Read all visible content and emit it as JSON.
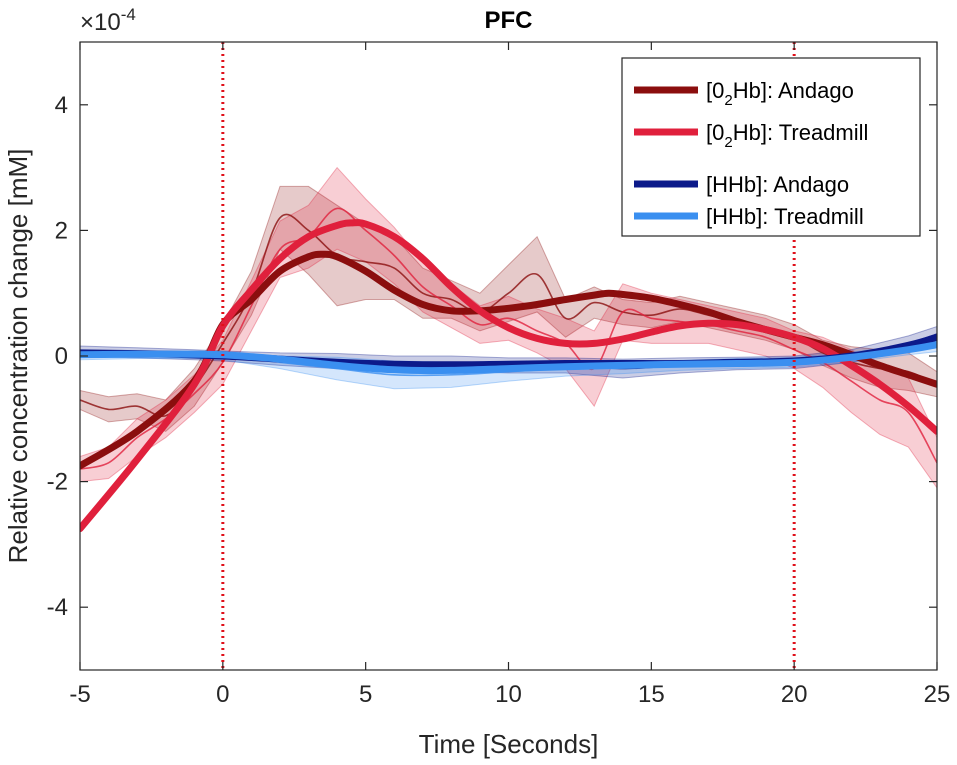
{
  "chart_data": {
    "type": "line",
    "title": "PFC",
    "xlabel": "Time [Seconds]",
    "ylabel": "Relative concentration change [mM]",
    "y_exponent_label": "×10",
    "y_exponent_power": "-4",
    "xlim": [
      -5,
      25
    ],
    "ylim": [
      -5,
      5
    ],
    "x_ticks": [
      -5,
      0,
      5,
      10,
      15,
      20,
      25
    ],
    "x_tick_labels": [
      "-5",
      "0",
      "5",
      "10",
      "15",
      "20",
      "25"
    ],
    "y_ticks": [
      -4,
      -2,
      0,
      2,
      4
    ],
    "y_tick_labels": [
      "-4",
      "-2",
      "0",
      "2",
      "4"
    ],
    "vertical_markers": [
      0,
      20
    ],
    "legend_position": "top-right",
    "legend": [
      {
        "pre": "[0",
        "sub": "2",
        "post": "Hb]: Andago"
      },
      {
        "pre": "[0",
        "sub": "2",
        "post": "Hb]: Treadmill"
      },
      {
        "pre": "[HHb]: Andago",
        "sub": "",
        "post": ""
      },
      {
        "pre": "[HHb]: Treadmill",
        "sub": "",
        "post": ""
      }
    ],
    "series": [
      {
        "name": "[02Hb]: Andago",
        "color": "#8b0e0e",
        "fit": {
          "x": [
            -5,
            -3,
            -1,
            0,
            1,
            2,
            3,
            3.5,
            4,
            5,
            6,
            7,
            8,
            9,
            10,
            11,
            12,
            13,
            13.5,
            14,
            15,
            16,
            17,
            18,
            19,
            20,
            21,
            22,
            23,
            24,
            25
          ],
          "y": [
            -1.75,
            -1.2,
            -0.4,
            0.5,
            0.9,
            1.35,
            1.58,
            1.62,
            1.58,
            1.35,
            1.05,
            0.82,
            0.72,
            0.72,
            0.76,
            0.82,
            0.9,
            0.97,
            1.0,
            0.98,
            0.92,
            0.82,
            0.7,
            0.55,
            0.42,
            0.3,
            0.18,
            0.02,
            -0.15,
            -0.3,
            -0.45
          ]
        },
        "raw": {
          "x": [
            -5,
            -4,
            -3,
            -2,
            -1,
            0,
            1,
            2,
            3,
            4,
            5,
            6,
            7,
            8,
            9,
            10,
            11,
            12,
            13,
            14,
            15,
            16,
            17,
            18,
            19,
            20,
            21,
            22,
            23,
            24,
            25
          ],
          "y": [
            -0.7,
            -0.85,
            -0.8,
            -0.95,
            -0.5,
            0.2,
            1.0,
            2.2,
            2.0,
            1.6,
            1.5,
            1.4,
            1.0,
            0.9,
            0.7,
            1.0,
            1.3,
            0.6,
            0.85,
            0.7,
            0.65,
            0.75,
            0.65,
            0.55,
            0.45,
            0.3,
            0.05,
            -0.1,
            -0.2,
            -0.25,
            -0.45
          ]
        },
        "band_halfwidth": [
          0.15,
          0.2,
          0.2,
          0.25,
          0.3,
          0.3,
          0.35,
          0.5,
          0.7,
          0.8,
          0.6,
          0.5,
          0.4,
          0.3,
          0.3,
          0.45,
          0.6,
          0.3,
          0.25,
          0.2,
          0.2,
          0.2,
          0.2,
          0.2,
          0.2,
          0.2,
          0.2,
          0.25,
          0.3,
          0.3,
          0.2
        ]
      },
      {
        "name": "[02Hb]: Treadmill",
        "color": "#e0203c",
        "fit": {
          "x": [
            -5,
            -3,
            -1,
            0,
            1,
            2,
            3,
            4,
            4.5,
            5,
            6,
            7,
            8,
            9,
            10,
            11,
            12,
            13,
            14,
            15,
            16,
            17,
            18,
            19,
            20,
            21,
            22,
            23,
            24,
            25
          ],
          "y": [
            -2.75,
            -1.65,
            -0.45,
            0.48,
            1.05,
            1.55,
            1.9,
            2.08,
            2.12,
            2.1,
            1.9,
            1.55,
            1.1,
            0.72,
            0.45,
            0.28,
            0.2,
            0.2,
            0.27,
            0.38,
            0.48,
            0.52,
            0.5,
            0.42,
            0.3,
            0.12,
            -0.15,
            -0.45,
            -0.8,
            -1.2
          ]
        },
        "raw": {
          "x": [
            -5,
            -4,
            -3,
            -2,
            -1,
            0,
            1,
            2,
            3,
            4,
            5,
            6,
            7,
            8,
            9,
            10,
            11,
            12,
            13,
            14,
            15,
            16,
            17,
            18,
            19,
            20,
            21,
            22,
            23,
            24,
            25
          ],
          "y": [
            -1.8,
            -1.7,
            -1.3,
            -1.0,
            -0.6,
            -0.1,
            0.8,
            1.7,
            1.9,
            2.35,
            2.0,
            1.6,
            1.1,
            0.8,
            0.5,
            0.6,
            0.4,
            0.2,
            -0.2,
            0.7,
            0.6,
            0.55,
            0.5,
            0.4,
            0.3,
            0.1,
            -0.1,
            -0.4,
            -0.7,
            -0.9,
            -1.7
          ]
        },
        "band_halfwidth": [
          0.2,
          0.25,
          0.3,
          0.3,
          0.3,
          0.35,
          0.4,
          0.45,
          0.5,
          0.65,
          0.5,
          0.45,
          0.4,
          0.35,
          0.3,
          0.35,
          0.35,
          0.4,
          0.6,
          0.45,
          0.4,
          0.35,
          0.3,
          0.3,
          0.3,
          0.3,
          0.4,
          0.5,
          0.55,
          0.55,
          0.4
        ]
      },
      {
        "name": "[HHb]: Andago",
        "color": "#0c1a8a",
        "fit": {
          "x": [
            -5,
            -2,
            0,
            2,
            4,
            6,
            8,
            10,
            12,
            14,
            16,
            18,
            20,
            22,
            24,
            25
          ],
          "y": [
            0.05,
            0.03,
            0.0,
            -0.05,
            -0.1,
            -0.13,
            -0.14,
            -0.13,
            -0.12,
            -0.12,
            -0.12,
            -0.1,
            -0.08,
            0.0,
            0.17,
            0.3
          ]
        },
        "raw": {
          "x": [
            -5,
            -3,
            -1,
            0,
            2,
            4,
            6,
            8,
            10,
            12,
            14,
            16,
            18,
            20,
            22,
            24,
            25
          ],
          "y": [
            0.08,
            0.05,
            0.02,
            0.0,
            -0.05,
            -0.08,
            -0.12,
            -0.12,
            -0.15,
            -0.15,
            -0.2,
            -0.15,
            -0.12,
            -0.1,
            0.0,
            0.2,
            0.35
          ]
        },
        "band_halfwidth": [
          0.08,
          0.08,
          0.08,
          0.08,
          0.1,
          0.12,
          0.12,
          0.12,
          0.12,
          0.12,
          0.15,
          0.12,
          0.1,
          0.1,
          0.1,
          0.12,
          0.12
        ]
      },
      {
        "name": "[HHb]: Treadmill",
        "color": "#3a8ff0",
        "fit": {
          "x": [
            -5,
            -2,
            0,
            2,
            4,
            6,
            8,
            10,
            12,
            14,
            16,
            18,
            20,
            22,
            24,
            25
          ],
          "y": [
            0.02,
            0.03,
            0.02,
            -0.05,
            -0.15,
            -0.22,
            -0.23,
            -0.2,
            -0.17,
            -0.15,
            -0.13,
            -0.12,
            -0.1,
            -0.02,
            0.1,
            0.18
          ]
        },
        "raw": {
          "x": [
            -5,
            -3,
            -1,
            0,
            2,
            4,
            6,
            8,
            10,
            12,
            14,
            16,
            18,
            20,
            22,
            24,
            25
          ],
          "y": [
            0.0,
            0.02,
            0.02,
            0.0,
            -0.1,
            -0.2,
            -0.3,
            -0.3,
            -0.25,
            -0.2,
            -0.18,
            -0.15,
            -0.12,
            -0.1,
            -0.02,
            0.1,
            0.15
          ]
        },
        "band_halfwidth": [
          0.06,
          0.06,
          0.06,
          0.06,
          0.1,
          0.18,
          0.22,
          0.2,
          0.15,
          0.12,
          0.1,
          0.08,
          0.08,
          0.08,
          0.08,
          0.08,
          0.08
        ]
      }
    ]
  }
}
